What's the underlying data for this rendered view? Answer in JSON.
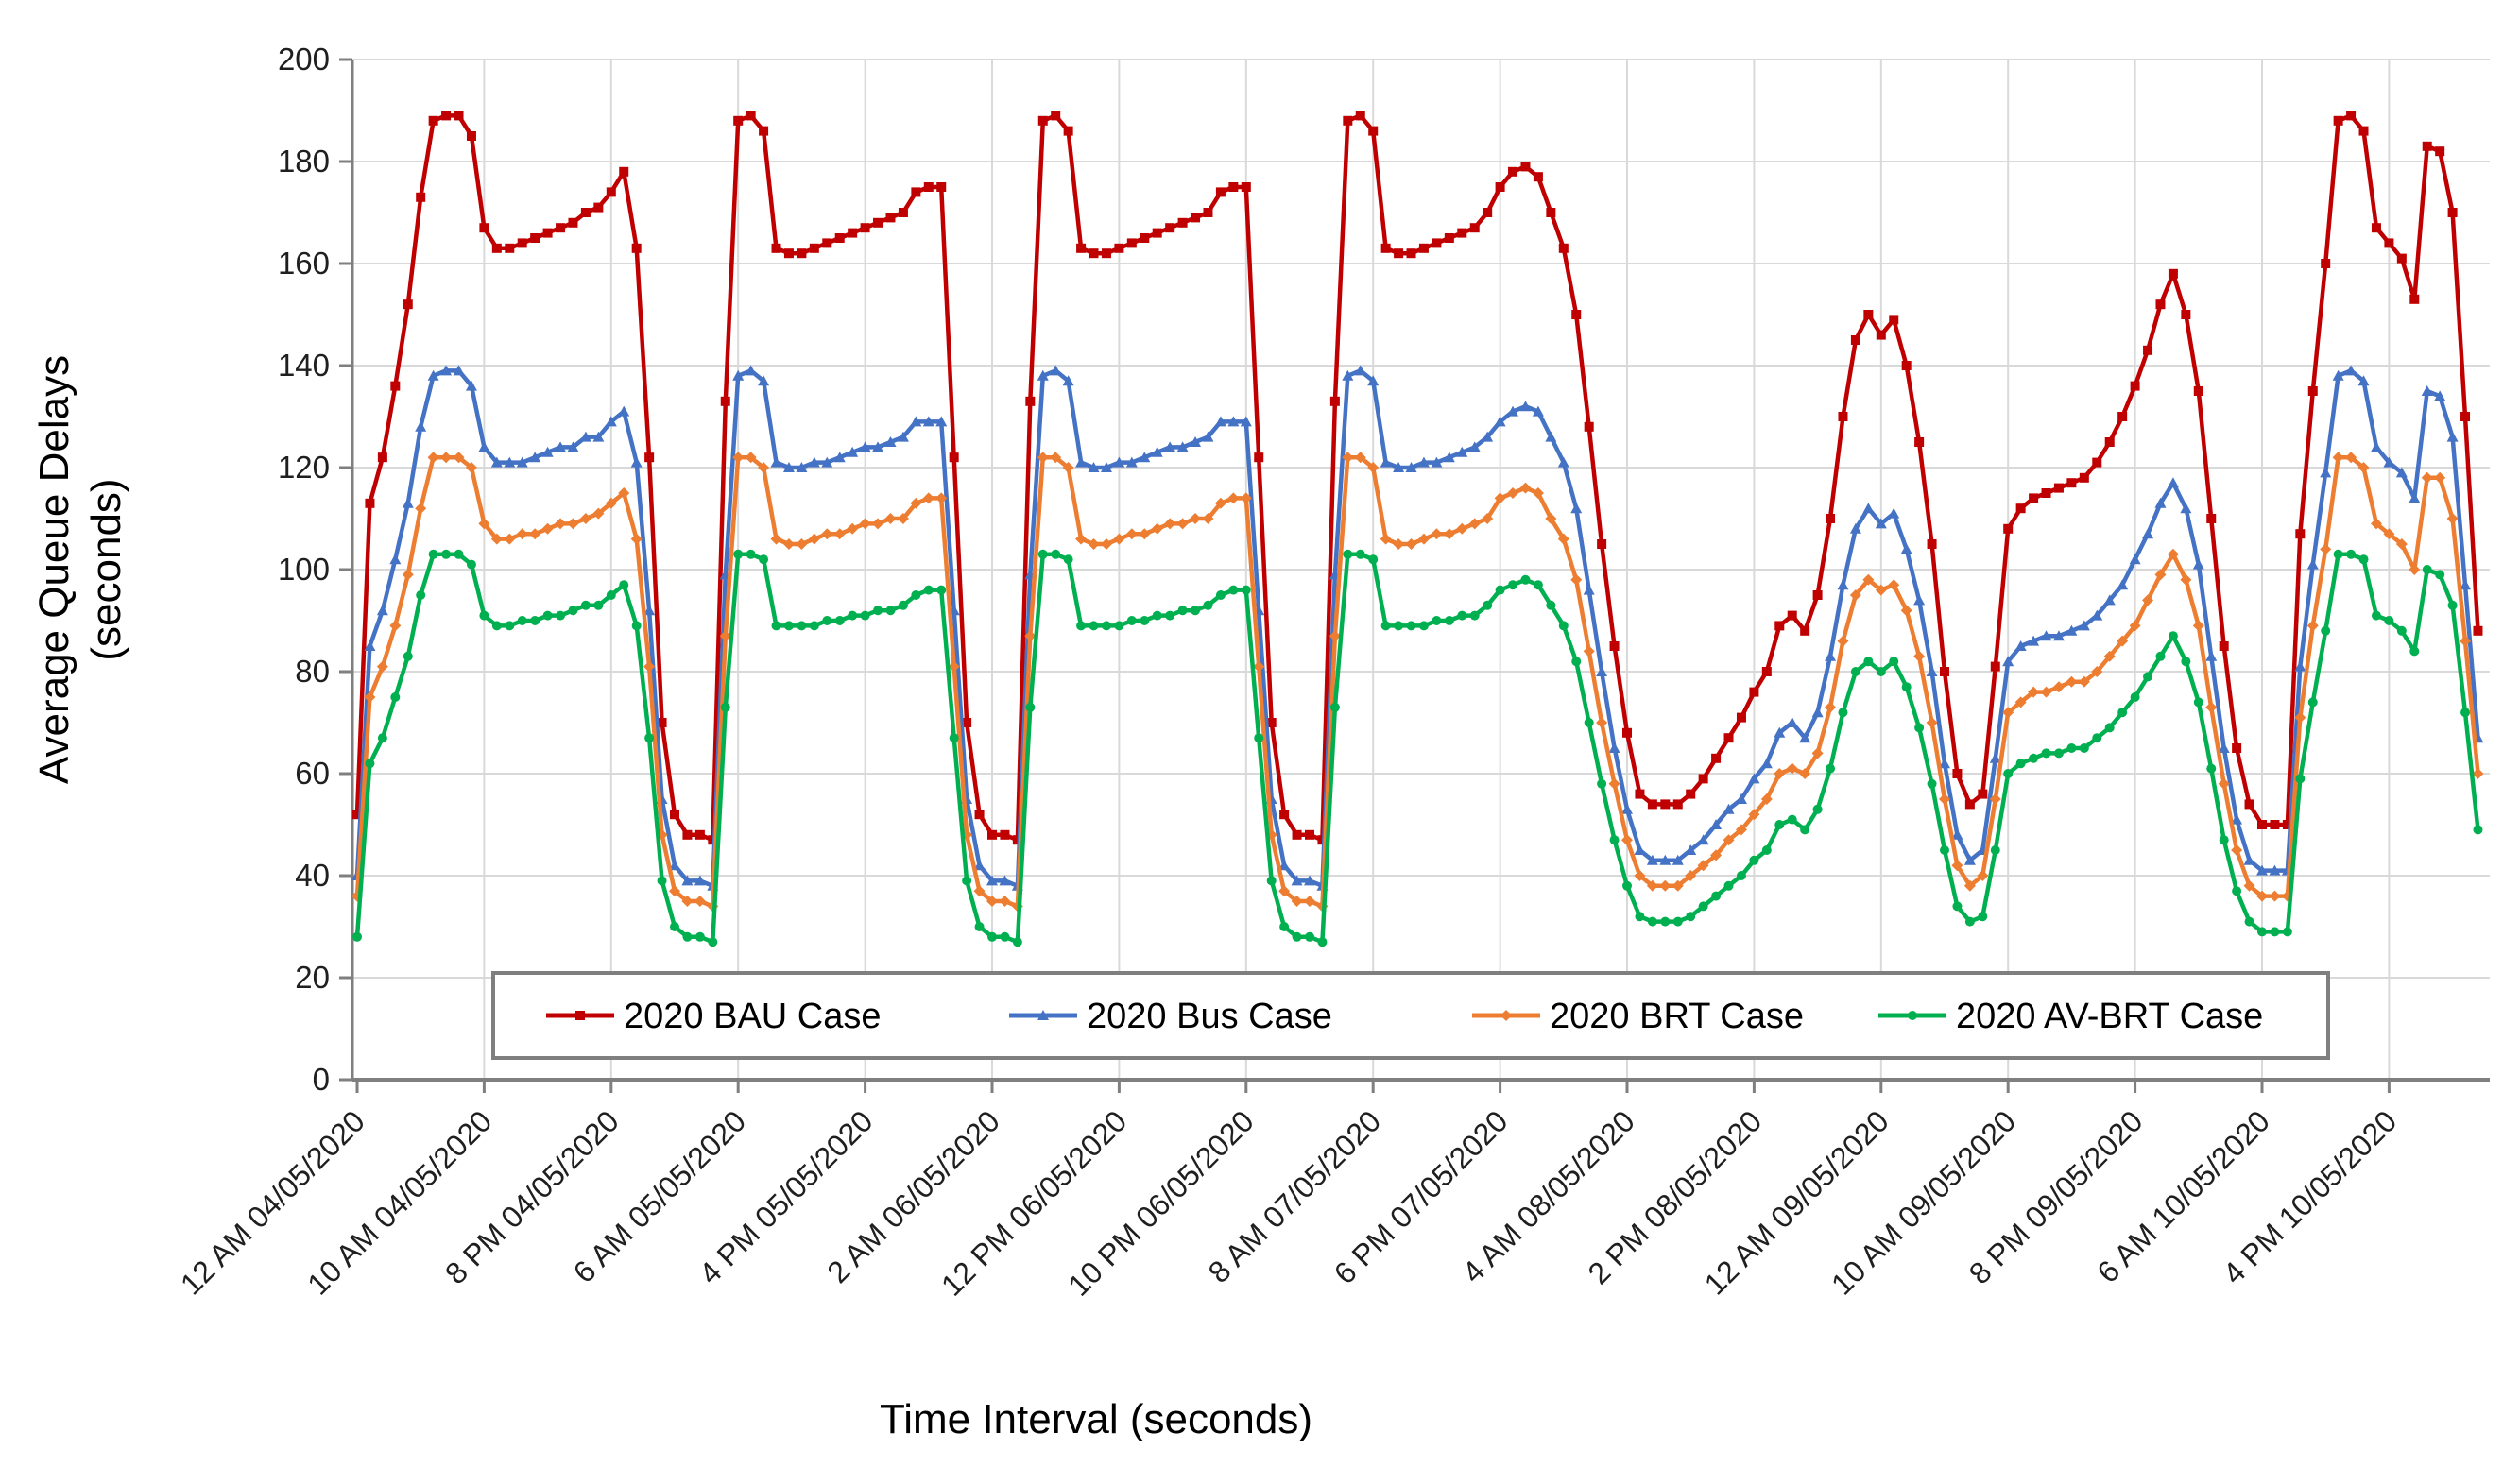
{
  "figure": {
    "y_axis_title_line1": "Average Queue Delays",
    "y_axis_title_line2": "(seconds)",
    "x_axis_title": "Time Interval (seconds)"
  },
  "chart_data": {
    "type": "line",
    "title": "",
    "xlabel": "Time Interval (seconds)",
    "ylabel": "Average Queue Delays (seconds)",
    "ylim": [
      0,
      200
    ],
    "y_ticks": [
      0,
      20,
      40,
      60,
      80,
      100,
      120,
      140,
      160,
      180,
      200
    ],
    "grid": true,
    "legend_position": "bottom-inside",
    "points_per_series": 168,
    "x_tick_step_points": 10,
    "x_tick_labels": [
      "12 AM 04/05/2020",
      "10 AM 04/05/2020",
      "8 PM 04/05/2020",
      "6 AM 05/05/2020",
      "4 PM 05/05/2020",
      "2 AM 06/05/2020",
      "12 PM 06/05/2020",
      "10 PM 06/05/2020",
      "8 AM 07/05/2020",
      "6 PM 07/05/2020",
      "4 AM 08/05/2020",
      "2 PM 08/05/2020",
      "12 AM 09/05/2020",
      "10 AM 09/05/2020",
      "8 PM 09/05/2020",
      "6 AM 10/05/2020",
      "4 PM 10/05/2020"
    ],
    "axis_color": "#7f7f7f",
    "gridline_color": "#d9d9d9",
    "tick_label_color": "#1f1f1f",
    "series": [
      {
        "name": "2020 BAU Case",
        "color": "#c00000",
        "marker": "square",
        "values": [
          52,
          113,
          122,
          136,
          152,
          173,
          188,
          189,
          189,
          185,
          167,
          163,
          163,
          164,
          165,
          166,
          167,
          168,
          170,
          171,
          174,
          178,
          163,
          122,
          70,
          52,
          48,
          48,
          47,
          133,
          188,
          189,
          186,
          163,
          162,
          162,
          163,
          164,
          165,
          166,
          167,
          168,
          169,
          170,
          174,
          175,
          175,
          122,
          70,
          52,
          48,
          48,
          47,
          133,
          188,
          189,
          186,
          163,
          162,
          162,
          163,
          164,
          165,
          166,
          167,
          168,
          169,
          170,
          174,
          175,
          175,
          122,
          70,
          52,
          48,
          48,
          47,
          133,
          188,
          189,
          186,
          163,
          162,
          162,
          163,
          164,
          165,
          166,
          167,
          170,
          175,
          178,
          179,
          177,
          170,
          163,
          150,
          128,
          105,
          85,
          68,
          56,
          54,
          54,
          54,
          56,
          59,
          63,
          67,
          71,
          76,
          80,
          89,
          91,
          88,
          95,
          110,
          130,
          145,
          150,
          146,
          149,
          140,
          125,
          105,
          80,
          60,
          54,
          56,
          81,
          108,
          112,
          114,
          115,
          116,
          117,
          118,
          121,
          125,
          130,
          136,
          143,
          152,
          158,
          150,
          135,
          110,
          85,
          65,
          54,
          50,
          50,
          50,
          107,
          135,
          160,
          188,
          189,
          186,
          167,
          164,
          161,
          153,
          183,
          182,
          170,
          130,
          88
        ]
      },
      {
        "name": "2020 Bus Case",
        "color": "#4472c4",
        "marker": "triangle",
        "values": [
          40,
          85,
          92,
          102,
          113,
          128,
          138,
          139,
          139,
          136,
          124,
          121,
          121,
          121,
          122,
          123,
          124,
          124,
          126,
          126,
          129,
          131,
          121,
          92,
          55,
          42,
          39,
          39,
          38,
          99,
          138,
          139,
          137,
          121,
          120,
          120,
          121,
          121,
          122,
          123,
          124,
          124,
          125,
          126,
          129,
          129,
          129,
          92,
          55,
          42,
          39,
          39,
          38,
          99,
          138,
          139,
          137,
          121,
          120,
          120,
          121,
          121,
          122,
          123,
          124,
          124,
          125,
          126,
          129,
          129,
          129,
          92,
          55,
          42,
          39,
          39,
          38,
          99,
          138,
          139,
          137,
          121,
          120,
          120,
          121,
          121,
          122,
          123,
          124,
          126,
          129,
          131,
          132,
          131,
          126,
          121,
          112,
          96,
          80,
          65,
          53,
          45,
          43,
          43,
          43,
          45,
          47,
          50,
          53,
          55,
          59,
          62,
          68,
          70,
          67,
          72,
          83,
          97,
          108,
          112,
          109,
          111,
          104,
          94,
          80,
          62,
          48,
          43,
          45,
          63,
          82,
          85,
          86,
          87,
          87,
          88,
          89,
          91,
          94,
          97,
          102,
          107,
          113,
          117,
          112,
          101,
          83,
          65,
          51,
          43,
          41,
          41,
          41,
          81,
          101,
          119,
          138,
          139,
          137,
          124,
          121,
          119,
          114,
          135,
          134,
          126,
          97,
          67
        ]
      },
      {
        "name": "2020 BRT Case",
        "color": "#ed7d31",
        "marker": "diamond",
        "values": [
          36,
          75,
          81,
          89,
          99,
          112,
          122,
          122,
          122,
          120,
          109,
          106,
          106,
          107,
          107,
          108,
          109,
          109,
          110,
          111,
          113,
          115,
          106,
          81,
          48,
          37,
          35,
          35,
          34,
          87,
          122,
          122,
          120,
          106,
          105,
          105,
          106,
          107,
          107,
          108,
          109,
          109,
          110,
          110,
          113,
          114,
          114,
          81,
          48,
          37,
          35,
          35,
          34,
          87,
          122,
          122,
          120,
          106,
          105,
          105,
          106,
          107,
          107,
          108,
          109,
          109,
          110,
          110,
          113,
          114,
          114,
          81,
          48,
          37,
          35,
          35,
          34,
          87,
          122,
          122,
          120,
          106,
          105,
          105,
          106,
          107,
          107,
          108,
          109,
          110,
          114,
          115,
          116,
          115,
          110,
          106,
          98,
          84,
          70,
          58,
          47,
          40,
          38,
          38,
          38,
          40,
          42,
          44,
          47,
          49,
          52,
          55,
          60,
          61,
          60,
          64,
          73,
          86,
          95,
          98,
          96,
          97,
          92,
          83,
          70,
          55,
          42,
          38,
          40,
          55,
          72,
          74,
          76,
          76,
          77,
          78,
          78,
          80,
          83,
          86,
          89,
          94,
          99,
          103,
          98,
          89,
          73,
          58,
          45,
          38,
          36,
          36,
          36,
          71,
          89,
          104,
          122,
          122,
          120,
          109,
          107,
          105,
          100,
          118,
          118,
          110,
          86,
          60
        ]
      },
      {
        "name": "2020 AV-BRT Case",
        "color": "#00b050",
        "marker": "circle",
        "values": [
          28,
          62,
          67,
          75,
          83,
          95,
          103,
          103,
          103,
          101,
          91,
          89,
          89,
          90,
          90,
          91,
          91,
          92,
          93,
          93,
          95,
          97,
          89,
          67,
          39,
          30,
          28,
          28,
          27,
          73,
          103,
          103,
          102,
          89,
          89,
          89,
          89,
          90,
          90,
          91,
          91,
          92,
          92,
          93,
          95,
          96,
          96,
          67,
          39,
          30,
          28,
          28,
          27,
          73,
          103,
          103,
          102,
          89,
          89,
          89,
          89,
          90,
          90,
          91,
          91,
          92,
          92,
          93,
          95,
          96,
          96,
          67,
          39,
          30,
          28,
          28,
          27,
          73,
          103,
          103,
          102,
          89,
          89,
          89,
          89,
          90,
          90,
          91,
          91,
          93,
          96,
          97,
          98,
          97,
          93,
          89,
          82,
          70,
          58,
          47,
          38,
          32,
          31,
          31,
          31,
          32,
          34,
          36,
          38,
          40,
          43,
          45,
          50,
          51,
          49,
          53,
          61,
          72,
          80,
          82,
          80,
          82,
          77,
          69,
          58,
          45,
          34,
          31,
          32,
          45,
          60,
          62,
          63,
          64,
          64,
          65,
          65,
          67,
          69,
          72,
          75,
          79,
          83,
          87,
          82,
          74,
          61,
          47,
          37,
          31,
          29,
          29,
          29,
          59,
          74,
          88,
          103,
          103,
          102,
          91,
          90,
          88,
          84,
          100,
          99,
          93,
          72,
          49
        ]
      }
    ]
  }
}
